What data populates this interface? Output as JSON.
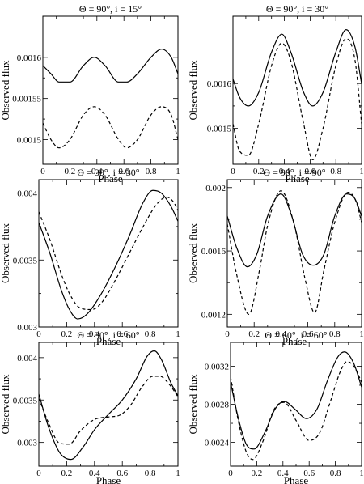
{
  "chart_data": [
    {
      "type": "line",
      "title": "Θ = 90°, i = 15°",
      "xlabel": "Phase",
      "ylabel": "Observed flux",
      "xlim": [
        0,
        1
      ],
      "ylim": [
        0.00147,
        0.00165
      ],
      "x_ticks": [
        "0",
        "0.2",
        "0.4",
        "0.6",
        "0.8",
        "1"
      ],
      "y_ticks": [
        {
          "value": 0.0015,
          "label": "0.0015"
        },
        {
          "value": 0.00155,
          "label": "0.00155"
        },
        {
          "value": 0.0016,
          "label": "0.0016"
        }
      ],
      "series": [
        {
          "style": "solid",
          "x": [
            0,
            0.06,
            0.12,
            0.2,
            0.3,
            0.38,
            0.46,
            0.56,
            0.62,
            0.7,
            0.8,
            0.88,
            0.95,
            1.0
          ],
          "values": [
            0.00159,
            0.00158,
            0.00157,
            0.00157,
            0.00159,
            0.0016,
            0.00159,
            0.00157,
            0.00157,
            0.00158,
            0.0016,
            0.00161,
            0.0016,
            0.00158
          ]
        },
        {
          "style": "dashed",
          "x": [
            0,
            0.06,
            0.12,
            0.2,
            0.3,
            0.38,
            0.46,
            0.56,
            0.62,
            0.7,
            0.8,
            0.88,
            0.95,
            1.0
          ],
          "values": [
            0.00152,
            0.0015,
            0.00149,
            0.0015,
            0.00153,
            0.00154,
            0.00153,
            0.0015,
            0.00149,
            0.0015,
            0.00153,
            0.00154,
            0.00153,
            0.0015
          ]
        }
      ]
    },
    {
      "type": "line",
      "title": "Θ = 90°, i = 30°",
      "xlabel": "Phase",
      "ylabel": "Observed flux",
      "xlim": [
        0,
        1
      ],
      "ylim": [
        0.00142,
        0.00175
      ],
      "x_ticks": [
        "0",
        "0.2",
        "0.4",
        "0.6",
        "0.8",
        "1"
      ],
      "y_ticks": [
        {
          "value": 0.0015,
          "label": "0.0015"
        },
        {
          "value": 0.0016,
          "label": "0.0016"
        }
      ],
      "series": [
        {
          "style": "solid",
          "x": [
            0,
            0.05,
            0.12,
            0.2,
            0.3,
            0.38,
            0.45,
            0.55,
            0.62,
            0.7,
            0.8,
            0.88,
            0.95,
            1.0
          ],
          "values": [
            0.00161,
            0.00157,
            0.00155,
            0.00158,
            0.00167,
            0.00171,
            0.00167,
            0.00158,
            0.00155,
            0.00158,
            0.00167,
            0.00172,
            0.00168,
            0.0016
          ]
        },
        {
          "style": "dashed",
          "x": [
            0,
            0.05,
            0.12,
            0.2,
            0.3,
            0.38,
            0.45,
            0.55,
            0.62,
            0.7,
            0.8,
            0.88,
            0.95,
            1.0
          ],
          "values": [
            0.00151,
            0.00145,
            0.00144,
            0.00151,
            0.00164,
            0.00169,
            0.00165,
            0.00151,
            0.00143,
            0.0015,
            0.00164,
            0.0017,
            0.00165,
            0.00151
          ]
        }
      ]
    },
    {
      "type": "line",
      "title": "Θ = 30°, i = 30°",
      "xlabel": "Phase",
      "ylabel": "Observed flux",
      "xlim": [
        0,
        1
      ],
      "ylim": [
        0.003,
        0.0041
      ],
      "x_ticks": [
        "0",
        "0.2",
        "0.4",
        "0.6",
        "0.8",
        "1"
      ],
      "y_ticks": [
        {
          "value": 0.003,
          "label": "0.003"
        },
        {
          "value": 0.0035,
          "label": "0.0035"
        },
        {
          "value": 0.004,
          "label": "0.004"
        }
      ],
      "series": [
        {
          "style": "solid",
          "x": [
            0,
            0.08,
            0.16,
            0.22,
            0.28,
            0.35,
            0.45,
            0.55,
            0.65,
            0.75,
            0.82,
            0.88,
            0.95,
            1.0
          ],
          "values": [
            0.00378,
            0.00355,
            0.00328,
            0.00313,
            0.00306,
            0.0031,
            0.00325,
            0.00345,
            0.00368,
            0.00393,
            0.00402,
            0.004,
            0.0039,
            0.00379
          ]
        },
        {
          "style": "dashed",
          "x": [
            0,
            0.08,
            0.16,
            0.22,
            0.3,
            0.38,
            0.45,
            0.55,
            0.65,
            0.75,
            0.85,
            0.92,
            0.97,
            1.0
          ],
          "values": [
            0.00386,
            0.00365,
            0.0034,
            0.00325,
            0.00314,
            0.00313,
            0.00318,
            0.00335,
            0.00355,
            0.00375,
            0.00392,
            0.00397,
            0.00393,
            0.00387
          ]
        }
      ]
    },
    {
      "type": "line",
      "title": "Θ = 90°, i = 90°",
      "xlabel": "Phase",
      "ylabel": "Observed flux",
      "xlim": [
        0,
        1
      ],
      "ylim": [
        0.00112,
        0.00205
      ],
      "x_ticks": [
        "0",
        "0.2",
        "0.4",
        "0.6",
        "0.8",
        "1"
      ],
      "y_ticks": [
        {
          "value": 0.0012,
          "label": "0.0012"
        },
        {
          "value": 0.0016,
          "label": "0.0016"
        },
        {
          "value": 0.002,
          "label": "0.002"
        }
      ],
      "series": [
        {
          "style": "solid",
          "x": [
            0,
            0.07,
            0.15,
            0.22,
            0.3,
            0.4,
            0.48,
            0.56,
            0.64,
            0.72,
            0.8,
            0.89,
            0.95,
            1.0
          ],
          "values": [
            0.00182,
            0.00162,
            0.0015,
            0.00158,
            0.00182,
            0.00196,
            0.00182,
            0.00158,
            0.00151,
            0.00158,
            0.00182,
            0.00196,
            0.00193,
            0.00182
          ]
        },
        {
          "style": "dashed",
          "x": [
            0,
            0.07,
            0.16,
            0.24,
            0.3,
            0.4,
            0.5,
            0.58,
            0.65,
            0.72,
            0.8,
            0.9,
            0.96,
            1.0
          ],
          "values": [
            0.00177,
            0.00145,
            0.0012,
            0.00148,
            0.00176,
            0.00198,
            0.00176,
            0.00142,
            0.00121,
            0.00148,
            0.00178,
            0.00197,
            0.00191,
            0.00178
          ]
        }
      ]
    },
    {
      "type": "line",
      "title": "Θ = 30°, i = 60°",
      "xlabel": "Phase",
      "ylabel": "Observed flux",
      "xlim": [
        0,
        1
      ],
      "ylim": [
        0.00272,
        0.00418
      ],
      "x_ticks": [
        "0",
        "0.2",
        "0.4",
        "0.6",
        "0.8",
        "1"
      ],
      "y_ticks": [
        {
          "value": 0.003,
          "label": "0.003"
        },
        {
          "value": 0.0035,
          "label": "0.0035"
        },
        {
          "value": 0.004,
          "label": "0.004"
        }
      ],
      "series": [
        {
          "style": "solid",
          "x": [
            0,
            0.07,
            0.15,
            0.23,
            0.32,
            0.4,
            0.5,
            0.6,
            0.7,
            0.78,
            0.83,
            0.88,
            0.95,
            1.0
          ],
          "values": [
            0.00357,
            0.00318,
            0.00288,
            0.0028,
            0.00295,
            0.00315,
            0.00333,
            0.0035,
            0.00375,
            0.00402,
            0.00408,
            0.00398,
            0.0037,
            0.00355
          ]
        },
        {
          "style": "dashed",
          "x": [
            0,
            0.07,
            0.15,
            0.22,
            0.3,
            0.4,
            0.5,
            0.58,
            0.66,
            0.74,
            0.82,
            0.87,
            0.94,
            1.0
          ],
          "values": [
            0.00352,
            0.00323,
            0.00299,
            0.00298,
            0.00314,
            0.00327,
            0.0033,
            0.00332,
            0.00344,
            0.00365,
            0.00378,
            0.00378,
            0.00368,
            0.00354
          ]
        }
      ]
    },
    {
      "type": "line",
      "title": "Θ = 60°, i = 60°",
      "xlabel": "Phase",
      "ylabel": "Observed flux",
      "xlim": [
        0,
        1
      ],
      "ylim": [
        0.00215,
        0.00345
      ],
      "x_ticks": [
        "0",
        "0.2",
        "0.4",
        "0.6",
        "0.8",
        "1"
      ],
      "y_ticks": [
        {
          "value": 0.0024,
          "label": "0.0024"
        },
        {
          "value": 0.0028,
          "label": "0.0028"
        },
        {
          "value": 0.0032,
          "label": "0.0032"
        }
      ],
      "series": [
        {
          "style": "solid",
          "x": [
            0,
            0.06,
            0.12,
            0.18,
            0.26,
            0.34,
            0.41,
            0.49,
            0.58,
            0.66,
            0.74,
            0.82,
            0.87,
            0.94,
            1.0
          ],
          "values": [
            0.00303,
            0.00265,
            0.00238,
            0.00233,
            0.0025,
            0.00275,
            0.00283,
            0.00275,
            0.00265,
            0.00275,
            0.00305,
            0.0033,
            0.00335,
            0.00323,
            0.00298
          ]
        },
        {
          "style": "dashed",
          "x": [
            0,
            0.06,
            0.12,
            0.17,
            0.25,
            0.33,
            0.41,
            0.5,
            0.6,
            0.68,
            0.76,
            0.84,
            0.89,
            0.95,
            1.0
          ],
          "values": [
            0.00309,
            0.00262,
            0.0023,
            0.00222,
            0.00242,
            0.00274,
            0.00282,
            0.00263,
            0.00242,
            0.0025,
            0.00282,
            0.00315,
            0.00325,
            0.00318,
            0.00303
          ]
        }
      ]
    }
  ]
}
